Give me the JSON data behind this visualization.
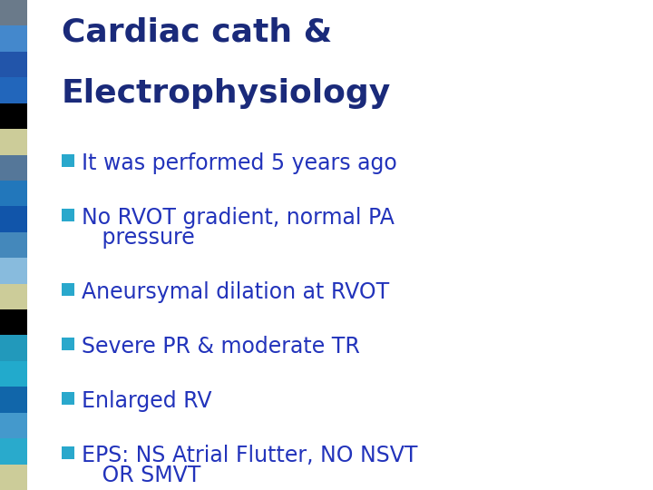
{
  "title_line1": "Cardiac cath &",
  "title_line2": "Electrophysiology",
  "title_color": "#1a2a7a",
  "bullet_color": "#2233bb",
  "bullet_marker_color": "#29a8cc",
  "background_color": "#ffffff",
  "bullet_points": [
    [
      "It was performed 5 years ago"
    ],
    [
      "No RVOT gradient, normal PA",
      "   pressure"
    ],
    [
      "Aneursymal dilation at RVOT"
    ],
    [
      "Severe PR & moderate TR"
    ],
    [
      "Enlarged RV"
    ],
    [
      "EPS: NS Atrial Flutter, NO NSVT",
      "   OR SMVT"
    ]
  ],
  "left_strip_colors": [
    "#6a7a8a",
    "#4488cc",
    "#2255aa",
    "#2266bb",
    "#000000",
    "#cccc99",
    "#557799",
    "#2277bb",
    "#1155aa",
    "#4488bb",
    "#88bbdd",
    "#cccc99",
    "#000000",
    "#2299bb",
    "#22aacc",
    "#1166aa",
    "#4499cc",
    "#29aacc",
    "#cccc99"
  ],
  "figsize": [
    7.2,
    5.4
  ],
  "dpi": 100
}
